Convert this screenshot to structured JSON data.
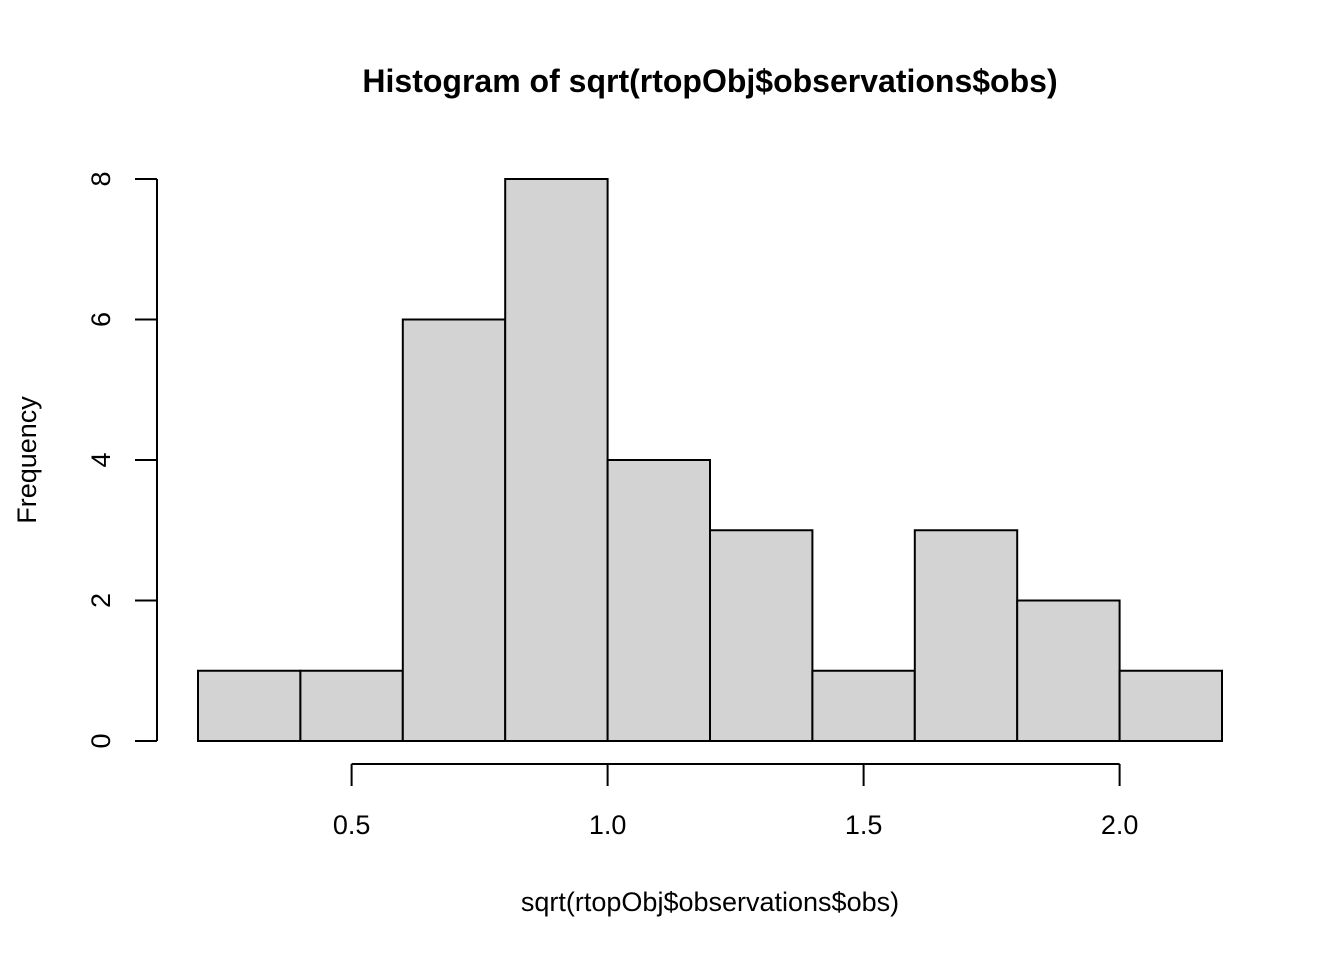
{
  "chart_data": {
    "type": "bar",
    "subtype": "histogram",
    "title": "Histogram of sqrt(rtopObj$observations$obs)",
    "xlabel": "sqrt(rtopObj$observations$obs)",
    "ylabel": "Frequency",
    "bin_edges": [
      0.2,
      0.4,
      0.6,
      0.8,
      1.0,
      1.2,
      1.4,
      1.6,
      1.8,
      2.0,
      2.2
    ],
    "values": [
      1,
      1,
      6,
      8,
      4,
      3,
      1,
      3,
      2,
      1
    ],
    "xlim": [
      0.2,
      2.2
    ],
    "ylim": [
      0,
      8
    ],
    "x_ticks": [
      0.5,
      1.0,
      1.5,
      2.0
    ],
    "x_tick_labels": [
      "0.5",
      "1.0",
      "1.5",
      "2.0"
    ],
    "y_ticks": [
      0,
      2,
      4,
      6,
      8
    ],
    "y_tick_labels": [
      "0",
      "2",
      "4",
      "6",
      "8"
    ],
    "grid": false,
    "legend": "none",
    "colors": {
      "bar_fill": "#d3d3d3",
      "bar_stroke": "#000000",
      "axis": "#000000",
      "background": "#ffffff"
    }
  }
}
